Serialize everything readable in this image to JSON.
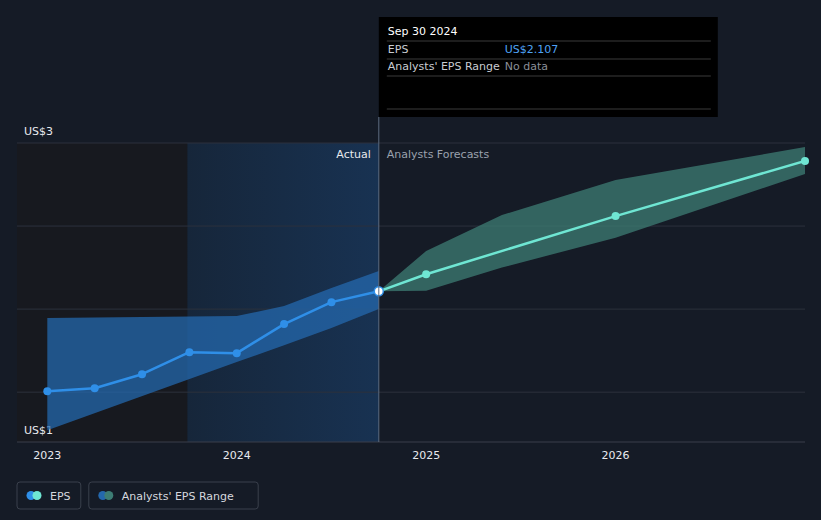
{
  "chart_data": {
    "type": "line",
    "series": [
      {
        "name": "EPS",
        "type": "line",
        "marker": "circle",
        "x": [
          2023.0,
          2023.25,
          2023.5,
          2023.75,
          2024.0,
          2024.25,
          2024.5,
          2024.75,
          2025.0,
          2026.0,
          2027.0
        ],
        "values": [
          1.506,
          1.524,
          1.608,
          1.741,
          1.735,
          1.91,
          2.042,
          2.107,
          2.21,
          2.56,
          2.892
        ],
        "colors": [
          "#2f8fe8",
          "#2f8fe8",
          "#2f8fe8",
          "#2f8fe8",
          "#2f8fe8",
          "#2f8fe8",
          "#2f8fe8",
          "#2f8fe8",
          "#6fe6d3",
          "#6fe6d3",
          "#6fe6d3"
        ]
      },
      {
        "name": "Analysts' EPS Range",
        "type": "area",
        "x": [
          2023.0,
          2024.0,
          2024.25,
          2024.5,
          2024.75,
          null,
          2024.75,
          2025.0,
          2025.4,
          2026.0,
          2027.0
        ],
        "low": [
          1.271,
          1.681,
          1.782,
          1.887,
          2.0,
          null,
          2.107,
          2.11,
          2.25,
          2.43,
          2.813
        ],
        "high": [
          1.946,
          1.958,
          2.018,
          2.127,
          2.229,
          null,
          2.107,
          2.35,
          2.566,
          2.777,
          2.976
        ],
        "colors": [
          "#2468ad",
          "#2468ad",
          "#2468ad",
          "#2468ad",
          "#2468ad",
          "#2468ad",
          "#3d7d74",
          "#3d7d74",
          "#3d7d74",
          "#3d7d74",
          "#3d7d74"
        ]
      }
    ],
    "xlim": [
      2022.84,
      2027.0
    ],
    "xticks": [
      2023,
      2024,
      2025,
      2026
    ],
    "ylim": [
      1.2,
      3
    ],
    "yticks": [
      {
        "value": 1.2,
        "label": "US$1"
      },
      {
        "value": 3,
        "label": "US$3"
      }
    ],
    "ygrid": [
      1.5,
      2,
      2.5,
      3
    ],
    "grid": true,
    "legend": "bottom-left",
    "annotations": {
      "actual": "Actual",
      "forecast": "Analysts Forecasts"
    },
    "divider": 2024.75,
    "shaded_x": [
      2023.74,
      2024.75
    ],
    "tooltip": {
      "title": "Sep 30 2024",
      "rows": [
        {
          "label": "EPS",
          "value": "US$2.107"
        },
        {
          "label": "Analysts' EPS Range",
          "value": "No data"
        }
      ]
    }
  }
}
